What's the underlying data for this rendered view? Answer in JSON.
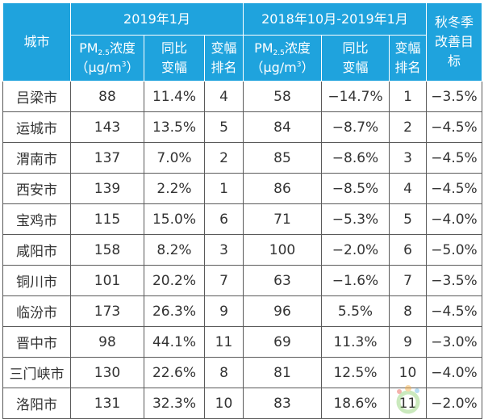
{
  "header": {
    "city": "城市",
    "group1": "2019年1月",
    "group2": "2018年10月-2019年1月",
    "target": "秋冬季改善目标",
    "pm_label": "PM",
    "pm_sub": "2.5",
    "pm_suffix": "浓度",
    "unit_pre": "（μg/m",
    "unit_sup": "3",
    "unit_post": "）",
    "yoy": "同比变幅",
    "rank": "变幅排名"
  },
  "rows": [
    {
      "city": "吕梁市",
      "pm1": "88",
      "yoy1": "11.4%",
      "rank1": "4",
      "pm2": "58",
      "yoy2": "−14.7%",
      "rank2": "1",
      "target": "−3.5%"
    },
    {
      "city": "运城市",
      "pm1": "143",
      "yoy1": "13.5%",
      "rank1": "5",
      "pm2": "84",
      "yoy2": "−8.7%",
      "rank2": "2",
      "target": "−4.5%"
    },
    {
      "city": "渭南市",
      "pm1": "137",
      "yoy1": "7.0%",
      "rank1": "2",
      "pm2": "85",
      "yoy2": "−8.6%",
      "rank2": "3",
      "target": "−4.5%"
    },
    {
      "city": "西安市",
      "pm1": "139",
      "yoy1": "2.2%",
      "rank1": "1",
      "pm2": "86",
      "yoy2": "−8.5%",
      "rank2": "4",
      "target": "−4.5%"
    },
    {
      "city": "宝鸡市",
      "pm1": "115",
      "yoy1": "15.0%",
      "rank1": "6",
      "pm2": "71",
      "yoy2": "−5.3%",
      "rank2": "5",
      "target": "−4.0%"
    },
    {
      "city": "咸阳市",
      "pm1": "158",
      "yoy1": "8.2%",
      "rank1": "3",
      "pm2": "100",
      "yoy2": "−2.0%",
      "rank2": "6",
      "target": "−5.0%"
    },
    {
      "city": "铜川市",
      "pm1": "101",
      "yoy1": "20.2%",
      "rank1": "7",
      "pm2": "63",
      "yoy2": "−1.6%",
      "rank2": "7",
      "target": "−3.5%"
    },
    {
      "city": "临汾市",
      "pm1": "173",
      "yoy1": "26.3%",
      "rank1": "9",
      "pm2": "96",
      "yoy2": "5.5%",
      "rank2": "8",
      "target": "−4.5%"
    },
    {
      "city": "晋中市",
      "pm1": "98",
      "yoy1": "44.1%",
      "rank1": "11",
      "pm2": "69",
      "yoy2": "11.3%",
      "rank2": "9",
      "target": "−3.0%"
    },
    {
      "city": "三门峡市",
      "pm1": "130",
      "yoy1": "22.6%",
      "rank1": "8",
      "pm2": "81",
      "yoy2": "12.5%",
      "rank2": "10",
      "target": "−4.0%"
    },
    {
      "city": "洛阳市",
      "pm1": "131",
      "yoy1": "32.3%",
      "rank1": "10",
      "pm2": "83",
      "yoy2": "18.6%",
      "rank2": "11",
      "target": "−2.0%"
    }
  ],
  "watermark": {
    "en": "IN-EN.com",
    "cn": "国际能源网"
  }
}
